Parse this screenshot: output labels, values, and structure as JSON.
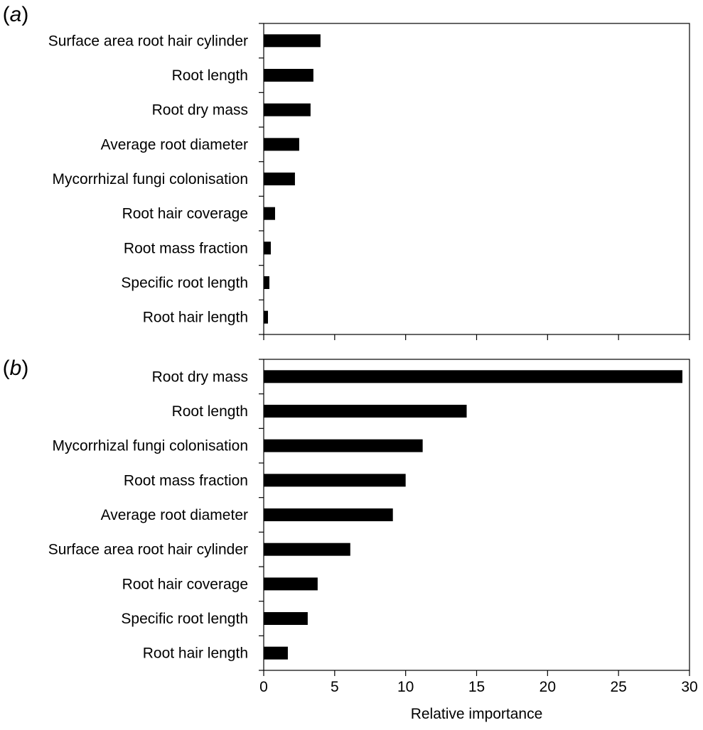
{
  "panel_letters": [
    "a",
    "b"
  ],
  "chart_data": [
    {
      "type": "bar",
      "orientation": "horizontal",
      "panel": "a",
      "categories": [
        "Surface area root hair cylinder",
        "Root length",
        "Root dry mass",
        "Average root diameter",
        "Mycorrhizal fungi colonisation",
        "Root hair coverage",
        "Root mass fraction",
        "Specific root length",
        "Root hair length"
      ],
      "values": [
        4.0,
        3.5,
        3.3,
        2.5,
        2.2,
        0.8,
        0.5,
        0.4,
        0.3
      ],
      "xlim": [
        0,
        30
      ],
      "xticks": [
        0,
        5,
        10,
        15,
        20,
        25,
        30
      ],
      "show_tick_labels": false,
      "xlabel": "",
      "bar_color": "#000000"
    },
    {
      "type": "bar",
      "orientation": "horizontal",
      "panel": "b",
      "categories": [
        "Root dry mass",
        "Root length",
        "Mycorrhizal fungi colonisation",
        "Root mass fraction",
        "Average root diameter",
        "Surface area root hair cylinder",
        "Root hair coverage",
        "Specific root length",
        "Root hair length"
      ],
      "values": [
        29.5,
        14.3,
        11.2,
        10.0,
        9.1,
        6.1,
        3.8,
        3.1,
        1.7
      ],
      "xlim": [
        0,
        30
      ],
      "xticks": [
        0,
        5,
        10,
        15,
        20,
        25,
        30
      ],
      "show_tick_labels": true,
      "xlabel": "Relative importance",
      "bar_color": "#000000"
    }
  ]
}
